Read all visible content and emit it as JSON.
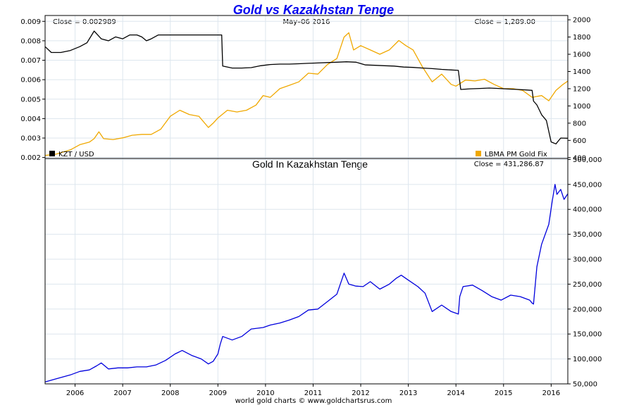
{
  "colors": {
    "kzt": "#000000",
    "gold": "#f0a800",
    "gold_in_kzt": "#0000dd",
    "grid": "#dde6ee",
    "title": "#0000ee"
  },
  "footer": "world gold charts © www.goldchartsrus.com",
  "chart_data": [
    {
      "type": "line",
      "title": "Gold vs Kazakhstan Tenge",
      "header_left": "Close = 0.002989",
      "header_center": "May–06  2016",
      "header_right": "Close = 1,289.00",
      "x_ticks": [
        "2006",
        "2007",
        "2008",
        "2009",
        "2010",
        "2011",
        "2012",
        "2013",
        "2014",
        "2015",
        "2016"
      ],
      "x_range": [
        2005.37,
        2016.35
      ],
      "y_left": {
        "ticks": [
          "0.002",
          "0.003",
          "0.004",
          "0.005",
          "0.006",
          "0.007",
          "0.008",
          "0.009"
        ],
        "range": [
          0.00195,
          0.0093
        ]
      },
      "y_right": {
        "ticks": [
          "400",
          "600",
          "800",
          "1000",
          "1200",
          "1400",
          "1600",
          "1800",
          "2000"
        ],
        "range": [
          390,
          2050
        ]
      },
      "legend_left": "KZT / USD",
      "legend_right": "LBMA PM Gold Fix",
      "grid": true,
      "series": [
        {
          "name": "KZT / USD",
          "axis": "left",
          "x": [
            2005.37,
            2005.5,
            2005.7,
            2005.9,
            2006.1,
            2006.25,
            2006.4,
            2006.55,
            2006.7,
            2006.85,
            2007.0,
            2007.15,
            2007.3,
            2007.4,
            2007.5,
            2007.6,
            2007.75,
            2007.9,
            2008.0,
            2008.2,
            2008.4,
            2008.6,
            2008.8,
            2009.0,
            2009.08,
            2009.1,
            2009.3,
            2009.5,
            2009.7,
            2009.9,
            2010.1,
            2010.3,
            2010.5,
            2010.7,
            2010.9,
            2011.1,
            2011.3,
            2011.5,
            2011.7,
            2011.9,
            2012.1,
            2012.3,
            2012.5,
            2012.7,
            2012.9,
            2013.1,
            2013.3,
            2013.5,
            2013.7,
            2013.9,
            2014.05,
            2014.1,
            2014.3,
            2014.5,
            2014.7,
            2014.9,
            2015.1,
            2015.3,
            2015.5,
            2015.6,
            2015.63,
            2015.7,
            2015.8,
            2015.9,
            2016.0,
            2016.1,
            2016.2,
            2016.35
          ],
          "values": [
            0.0077,
            0.0074,
            0.0074,
            0.0075,
            0.0077,
            0.0079,
            0.0085,
            0.0081,
            0.008,
            0.0082,
            0.0081,
            0.0083,
            0.0083,
            0.0082,
            0.008,
            0.0081,
            0.0083,
            0.0083,
            0.0083,
            0.0083,
            0.0083,
            0.0083,
            0.0083,
            0.0083,
            0.0083,
            0.0067,
            0.0066,
            0.0066,
            0.00662,
            0.00672,
            0.00678,
            0.0068,
            0.0068,
            0.00682,
            0.00684,
            0.00686,
            0.00688,
            0.0069,
            0.00692,
            0.0069,
            0.00676,
            0.00674,
            0.00672,
            0.0067,
            0.00665,
            0.00663,
            0.0066,
            0.00657,
            0.00653,
            0.0065,
            0.00648,
            0.0055,
            0.00553,
            0.00555,
            0.00557,
            0.00555,
            0.00552,
            0.0055,
            0.00547,
            0.00545,
            0.0049,
            0.0047,
            0.0042,
            0.0039,
            0.0028,
            0.0027,
            0.003,
            0.00299
          ]
        },
        {
          "name": "LBMA PM Gold Fix",
          "axis": "right",
          "x": [
            2005.37,
            2005.6,
            2005.9,
            2006.1,
            2006.3,
            2006.4,
            2006.5,
            2006.6,
            2006.8,
            2007.0,
            2007.2,
            2007.4,
            2007.6,
            2007.8,
            2008.0,
            2008.2,
            2008.4,
            2008.6,
            2008.8,
            2008.9,
            2009.0,
            2009.2,
            2009.4,
            2009.6,
            2009.8,
            2009.95,
            2010.1,
            2010.3,
            2010.5,
            2010.7,
            2010.9,
            2011.1,
            2011.3,
            2011.5,
            2011.65,
            2011.75,
            2011.85,
            2012.0,
            2012.2,
            2012.4,
            2012.6,
            2012.8,
            2012.95,
            2013.1,
            2013.3,
            2013.5,
            2013.7,
            2013.9,
            2014.0,
            2014.2,
            2014.4,
            2014.6,
            2014.8,
            2015.0,
            2015.2,
            2015.4,
            2015.6,
            2015.8,
            2015.95,
            2016.1,
            2016.25,
            2016.35
          ],
          "values": [
            425,
            440,
            490,
            550,
            580,
            620,
            700,
            620,
            610,
            630,
            660,
            670,
            670,
            730,
            880,
            950,
            900,
            880,
            750,
            800,
            860,
            950,
            930,
            950,
            1010,
            1120,
            1100,
            1200,
            1240,
            1280,
            1380,
            1370,
            1480,
            1550,
            1800,
            1850,
            1650,
            1700,
            1650,
            1600,
            1650,
            1760,
            1700,
            1650,
            1450,
            1280,
            1370,
            1250,
            1230,
            1300,
            1290,
            1310,
            1250,
            1200,
            1200,
            1180,
            1100,
            1120,
            1060,
            1180,
            1250,
            1289
          ]
        }
      ]
    },
    {
      "type": "line",
      "title": "Gold In Kazakhstan Tenge",
      "header_right": "Close = 431,286.87",
      "x_ticks": [
        "2006",
        "2007",
        "2008",
        "2009",
        "2010",
        "2011",
        "2012",
        "2013",
        "2014",
        "2015",
        "2016"
      ],
      "x_range": [
        2005.37,
        2016.35
      ],
      "y_right": {
        "ticks": [
          "50,000",
          "100,000",
          "150,000",
          "200,000",
          "250,000",
          "300,000",
          "350,000",
          "400,000",
          "450,000",
          "500,000"
        ],
        "range": [
          50000,
          502000
        ]
      },
      "grid": true,
      "series": [
        {
          "name": "Gold In Kazakhstan Tenge",
          "x": [
            2005.37,
            2005.6,
            2005.9,
            2006.1,
            2006.3,
            2006.45,
            2006.55,
            2006.7,
            2006.9,
            2007.1,
            2007.3,
            2007.5,
            2007.7,
            2007.9,
            2008.1,
            2008.25,
            2008.45,
            2008.65,
            2008.8,
            2008.9,
            2009.0,
            2009.05,
            2009.1,
            2009.3,
            2009.5,
            2009.7,
            2009.95,
            2010.1,
            2010.3,
            2010.5,
            2010.7,
            2010.9,
            2011.1,
            2011.3,
            2011.5,
            2011.65,
            2011.75,
            2011.9,
            2012.05,
            2012.2,
            2012.4,
            2012.6,
            2012.75,
            2012.85,
            2013.0,
            2013.2,
            2013.35,
            2013.5,
            2013.7,
            2013.9,
            2014.05,
            2014.08,
            2014.15,
            2014.35,
            2014.55,
            2014.75,
            2014.95,
            2015.15,
            2015.35,
            2015.55,
            2015.6,
            2015.63,
            2015.7,
            2015.8,
            2015.95,
            2016.02,
            2016.08,
            2016.12,
            2016.2,
            2016.27,
            2016.35
          ],
          "values": [
            54000,
            60000,
            68000,
            75000,
            78000,
            86000,
            92000,
            80000,
            82000,
            82000,
            84000,
            84000,
            88000,
            97000,
            110000,
            117000,
            107000,
            100000,
            90000,
            95000,
            110000,
            130000,
            145000,
            138000,
            145000,
            160000,
            163000,
            168000,
            172000,
            178000,
            185000,
            198000,
            200000,
            215000,
            230000,
            272000,
            250000,
            246000,
            245000,
            255000,
            240000,
            250000,
            262000,
            268000,
            258000,
            245000,
            232000,
            195000,
            208000,
            195000,
            190000,
            225000,
            245000,
            248000,
            237000,
            225000,
            218000,
            228000,
            225000,
            218000,
            212000,
            210000,
            285000,
            330000,
            370000,
            415000,
            450000,
            430000,
            440000,
            420000,
            431287
          ]
        }
      ]
    }
  ]
}
